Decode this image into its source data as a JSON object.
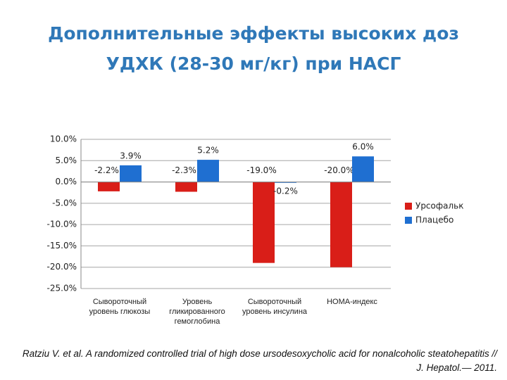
{
  "chart_data": {
    "type": "bar",
    "title": "Дополнительные эффекты высоких доз УДХК (28-30 мг/кг) при НАСГ",
    "categories": [
      "Сывороточный уровень глюкозы",
      "Уровень гликированного гемоглобина",
      "Сывороточный уровень инсулина",
      "HOMA-индекс"
    ],
    "series": [
      {
        "name": "Урсофальк",
        "color": "#d91e18",
        "values": [
          -2.2,
          -2.3,
          -19.0,
          -20.0
        ],
        "value_labels": [
          "-2.2%",
          "-2.3%",
          "-19.0%",
          "-20.0%"
        ]
      },
      {
        "name": "Плацебо",
        "color": "#1f6fd1",
        "values": [
          3.9,
          5.2,
          -0.2,
          6.0
        ],
        "value_labels": [
          "3.9%",
          "5.2%",
          "-0.2%",
          "6.0%"
        ]
      }
    ],
    "ylim": [
      -25,
      10
    ],
    "yticks": [
      {
        "value": -25,
        "label": "-25.0%"
      },
      {
        "value": -20,
        "label": "-20.0%"
      },
      {
        "value": -15,
        "label": "-15.0%"
      },
      {
        "value": -10,
        "label": "-10.0%"
      },
      {
        "value": -5,
        "label": "-5.0%"
      },
      {
        "value": 0,
        "label": "0.0%"
      },
      {
        "value": 5,
        "label": "5.0%"
      },
      {
        "value": 10,
        "label": "10.0%"
      }
    ],
    "grid": true,
    "legend": "right",
    "caption": "Ratziu V. et al. A randomized controlled trial of high dose ursodesoxycholic acid for nonalcoholic steatohepatitis // J. Hepatol.— 2011."
  }
}
